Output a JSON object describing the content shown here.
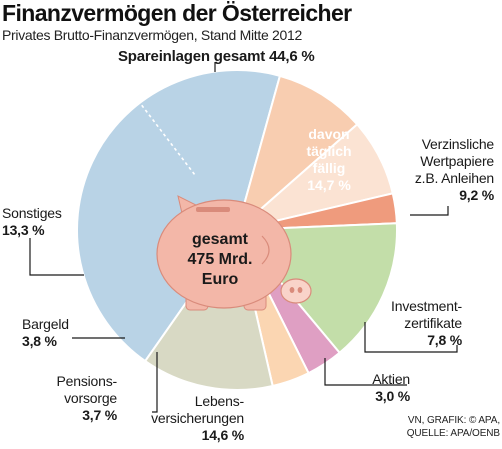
{
  "title": "Finanzvermögen der Österreicher",
  "subtitle": "Privates Brutto-Finanzvermögen, Stand Mitte 2012",
  "center_label": [
    "gesamt",
    "475 Mrd.",
    "Euro"
  ],
  "inner_note": [
    "davon",
    "täglich",
    "fällig",
    "14,7 %"
  ],
  "source_lines": [
    "VN, GRAFIK: © APA,",
    "QUELLE: APA/OENB"
  ],
  "chart_data": {
    "type": "pie",
    "title": "Finanzvermögen der Österreicher",
    "subtitle": "Privates Brutto-Finanzvermögen, Stand Mitte 2012",
    "total": "475 Mrd. Euro",
    "unit": "%",
    "slices": [
      {
        "name": "Spareinlagen gesamt",
        "value": 44.6,
        "color": "#b9d3e6",
        "sub": {
          "name": "davon täglich fällig",
          "value": 14.7
        }
      },
      {
        "name": "Verzinsliche Wertpapiere z.B. Anleihen",
        "value": 9.2,
        "color": "#f8cdb0"
      },
      {
        "name": "Investmentzertifikate",
        "value": 7.8,
        "color": "#fbe3d3"
      },
      {
        "name": "Aktien",
        "value": 3.0,
        "color": "#ef9b7d"
      },
      {
        "name": "Lebensversicherungen",
        "value": 14.6,
        "color": "#c3dea9"
      },
      {
        "name": "Pensionsvorsorge",
        "value": 3.7,
        "color": "#df9fc3"
      },
      {
        "name": "Bargeld",
        "value": 3.8,
        "color": "#fbd6b2"
      },
      {
        "name": "Sonstiges",
        "value": 13.3,
        "color": "#d8d9c4"
      }
    ]
  },
  "labels": {
    "spareinlagen": {
      "name": "Spareinlagen gesamt",
      "value": "44,6 %"
    },
    "wertpapiere": {
      "lines": [
        "Verzinsliche",
        "Wertpapiere",
        "z.B. Anleihen"
      ],
      "value": "9,2 %"
    },
    "investment": {
      "lines": [
        "Investment-",
        "zertifikate"
      ],
      "value": "7,8 %"
    },
    "aktien": {
      "lines": [
        "Aktien"
      ],
      "value": "3,0 %"
    },
    "leben": {
      "lines": [
        "Lebens-",
        "versicherungen"
      ],
      "value": "14,6 %"
    },
    "pension": {
      "lines": [
        "Pensions-",
        "vorsorge"
      ],
      "value": "3,7 %"
    },
    "bargeld": {
      "lines": [
        "Bargeld"
      ],
      "value": "3,8 %"
    },
    "sonstiges": {
      "lines": [
        "Sonstiges"
      ],
      "value": "13,3 %"
    }
  }
}
